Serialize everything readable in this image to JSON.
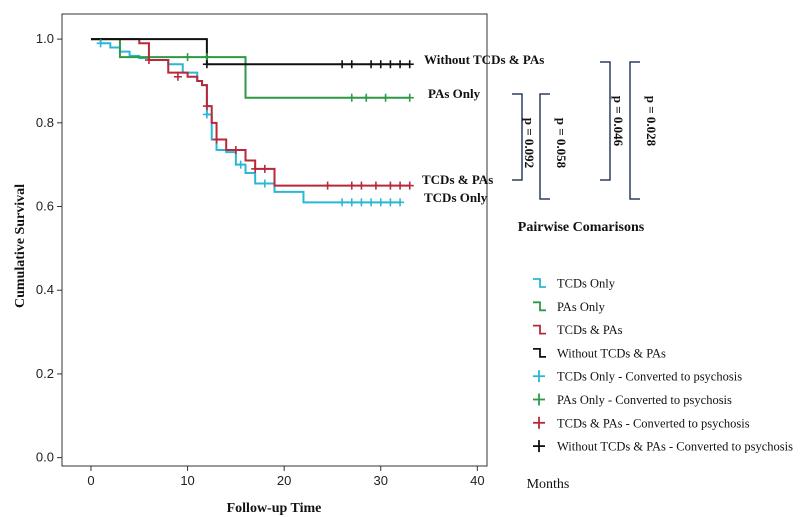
{
  "chart_data": {
    "type": "line",
    "xlabel": "Follow-up Time",
    "x_unit_label": "Months",
    "ylabel": "Cumulative Survival",
    "xlim": [
      -3,
      41
    ],
    "ylim": [
      -0.02,
      1.06
    ],
    "xticks": [
      0,
      10,
      20,
      30,
      40
    ],
    "xtick_labels": [
      "0",
      "10",
      "20",
      "30",
      "40"
    ],
    "yticks": [
      0.0,
      0.2,
      0.4,
      0.6,
      0.8,
      1.0
    ],
    "ytick_labels": [
      "0.0",
      "0.2",
      "0.4",
      "0.6",
      "0.8",
      "1.0"
    ],
    "series": [
      {
        "name": "TCDs Only",
        "color": "#2ab6d6",
        "end_label": "TCDs Only",
        "x": [
          0,
          1,
          2,
          3,
          4,
          5,
          6,
          8,
          9.5,
          11,
          11.5,
          12,
          12.5,
          13,
          14,
          15,
          16,
          17,
          19,
          22,
          32
        ],
        "y": [
          1.0,
          0.99,
          0.98,
          0.97,
          0.96,
          0.955,
          0.95,
          0.94,
          0.92,
          0.9,
          0.89,
          0.82,
          0.76,
          0.735,
          0.73,
          0.7,
          0.68,
          0.655,
          0.635,
          0.61,
          0.61
        ]
      },
      {
        "name": "PAs Only",
        "color": "#2e9a45",
        "end_label": "PAs Only",
        "x": [
          0,
          3,
          16,
          33
        ],
        "y": [
          1.0,
          0.957,
          0.86,
          0.86
        ]
      },
      {
        "name": "TCDs & PAs",
        "color": "#b8283a",
        "end_label": "TCDs & PAs",
        "x": [
          0,
          5,
          6,
          8,
          10,
          11,
          11.5,
          12,
          12.5,
          13,
          14,
          16,
          17,
          19,
          33
        ],
        "y": [
          1.0,
          0.99,
          0.95,
          0.92,
          0.91,
          0.9,
          0.89,
          0.84,
          0.8,
          0.76,
          0.735,
          0.71,
          0.69,
          0.65,
          0.65
        ]
      },
      {
        "name": "Without TCDs & PAs",
        "color": "#111111",
        "end_label": "Without TCDs & PAs",
        "x": [
          0,
          12,
          33
        ],
        "y": [
          1.0,
          0.94,
          0.94
        ]
      }
    ],
    "censor_marks": [
      {
        "name": "TCDs Only - Converted to psychosis",
        "color": "#2ab6d6",
        "x": [
          1,
          12,
          15.5,
          18,
          26,
          27,
          28,
          29,
          30,
          31,
          32
        ],
        "y": [
          0.99,
          0.82,
          0.7,
          0.655,
          0.61,
          0.61,
          0.61,
          0.61,
          0.61,
          0.61,
          0.61
        ]
      },
      {
        "name": "PAs Only - Converted to psychosis",
        "color": "#2e9a45",
        "x": [
          10,
          12,
          27,
          28.5,
          30.5,
          33
        ],
        "y": [
          0.957,
          0.957,
          0.86,
          0.86,
          0.86,
          0.86
        ]
      },
      {
        "name": "TCDs & PAs - Converted to psychosis",
        "color": "#b8283a",
        "x": [
          6,
          9,
          12,
          13,
          15,
          17,
          18,
          24.5,
          27,
          28,
          29.5,
          31,
          32,
          33
        ],
        "y": [
          0.95,
          0.91,
          0.84,
          0.76,
          0.735,
          0.69,
          0.69,
          0.65,
          0.65,
          0.65,
          0.65,
          0.65,
          0.65,
          0.65
        ]
      },
      {
        "name": "Without TCDs & PAs - Converted to psychosis",
        "color": "#111111",
        "x": [
          12,
          26,
          27,
          29,
          30,
          31,
          32,
          33
        ],
        "y": [
          0.94,
          0.94,
          0.94,
          0.94,
          0.94,
          0.94,
          0.94,
          0.94
        ]
      }
    ],
    "pairwise": {
      "title": "Pairwise Comarisons",
      "p_values": [
        "p = 0.092",
        "p = 0.058",
        "p = 0.046",
        "p = 0.028"
      ]
    },
    "legend": {
      "placement": "bottom-right",
      "entries": [
        {
          "label": "TCDs Only",
          "kind": "line",
          "color": "#2ab6d6"
        },
        {
          "label": "PAs Only",
          "kind": "line",
          "color": "#2e9a45"
        },
        {
          "label": "TCDs & PAs",
          "kind": "line",
          "color": "#b8283a"
        },
        {
          "label": "Without TCDs & PAs",
          "kind": "line",
          "color": "#111111"
        },
        {
          "label": "TCDs Only - Converted to psychosis",
          "kind": "cross",
          "color": "#2ab6d6"
        },
        {
          "label": "PAs Only - Converted to psychosis",
          "kind": "cross",
          "color": "#2e9a45"
        },
        {
          "label": "TCDs & PAs - Converted to psychosis",
          "kind": "cross",
          "color": "#b8283a"
        },
        {
          "label": "Without TCDs & PAs - Converted to psychosis",
          "kind": "cross",
          "color": "#111111"
        }
      ]
    },
    "grid": false
  }
}
